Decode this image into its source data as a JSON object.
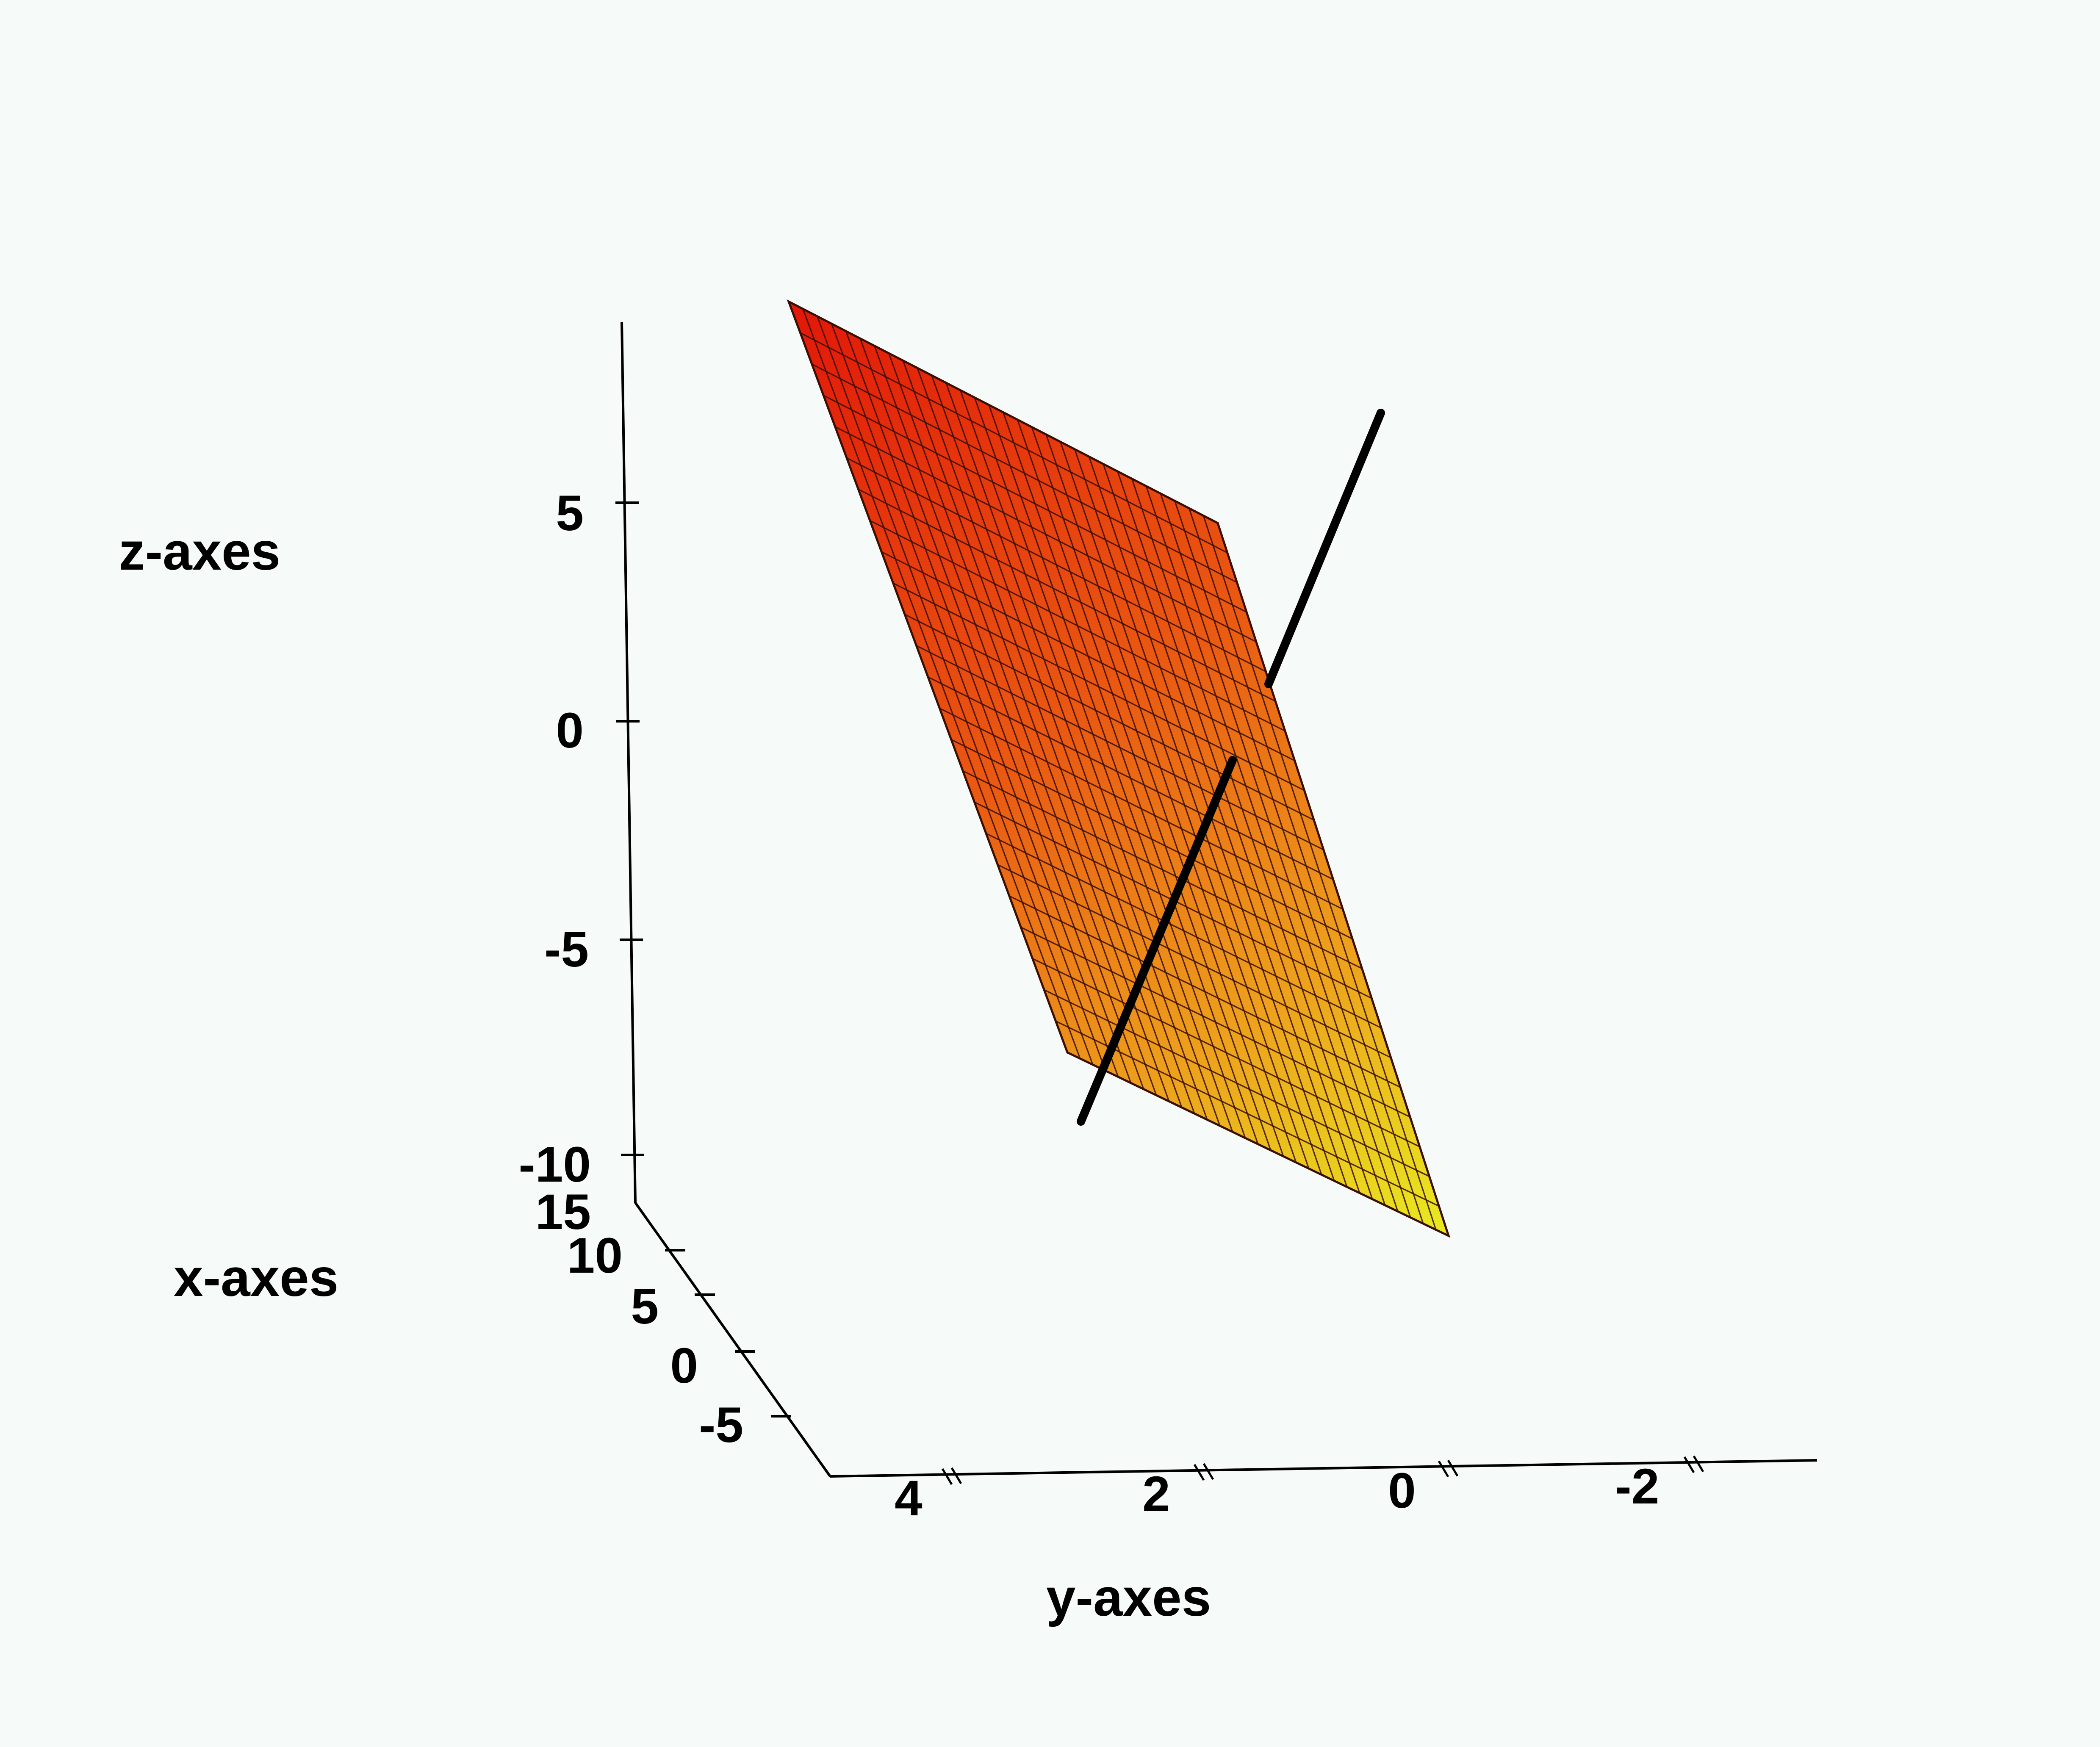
{
  "chart_data": {
    "type": "surface3d",
    "axes": {
      "x": {
        "label": "x-axes",
        "ticks": [
          "15",
          "10",
          "5",
          "0",
          "-5"
        ]
      },
      "y": {
        "label": "y-axes",
        "ticks": [
          "4",
          "2",
          "0",
          "-2"
        ]
      },
      "z": {
        "label": "z-axes",
        "ticks": [
          "5",
          "0",
          "-5",
          "-10"
        ]
      }
    },
    "series": [
      {
        "kind": "plane-surface",
        "colormap": [
          "#e21708",
          "#e8ec20"
        ],
        "grid_lines": "#3a0e00"
      },
      {
        "kind": "line",
        "color": "#000000"
      }
    ]
  }
}
